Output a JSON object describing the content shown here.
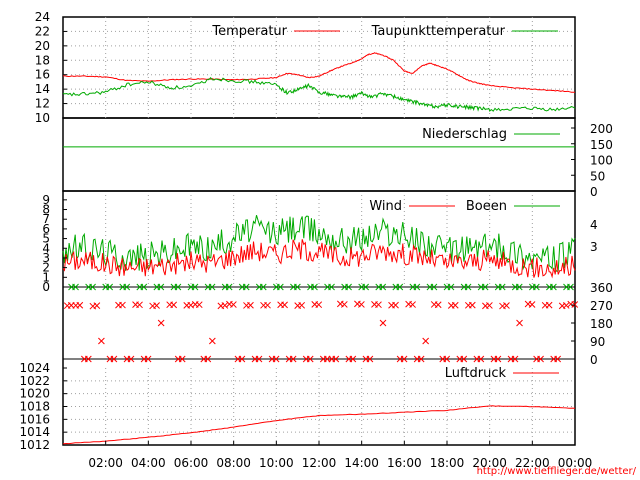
{
  "chart_data": [
    {
      "type": "line",
      "panel": "temperature",
      "ylim": [
        10,
        24
      ],
      "yticks": [
        "24",
        "22",
        "20",
        "18",
        "16",
        "14",
        "12",
        "10"
      ],
      "grid": true,
      "legend_position": "top-right",
      "series": [
        {
          "name": "Temperatur",
          "color": "#ff0000",
          "x": [
            0,
            1,
            2,
            3,
            4,
            5,
            6,
            7,
            8,
            9,
            10,
            10.5,
            11,
            11.5,
            12,
            12.5,
            13,
            13.5,
            14,
            14.3,
            14.6,
            15,
            15.5,
            16,
            16.4,
            16.8,
            17.2,
            17.6,
            18,
            18.5,
            19,
            19.5,
            20,
            21,
            22,
            23,
            24
          ],
          "y": [
            15.8,
            15.8,
            15.7,
            15.2,
            15.1,
            15.3,
            15.4,
            15.4,
            15.3,
            15.4,
            15.6,
            16.2,
            16.0,
            15.6,
            15.8,
            16.5,
            17.1,
            17.6,
            18.2,
            18.8,
            19.0,
            18.7,
            18.0,
            16.5,
            16.2,
            17.2,
            17.6,
            17.2,
            16.8,
            16.0,
            15.2,
            14.8,
            14.5,
            14.2,
            14.0,
            13.8,
            13.6
          ]
        },
        {
          "name": "Taupunkttemperatur",
          "color": "#00aa00",
          "x": [
            0,
            1,
            2,
            3,
            4,
            5,
            6,
            7,
            8,
            9,
            10,
            10.5,
            11,
            11.5,
            12,
            12.5,
            13,
            13.5,
            14,
            14.5,
            15,
            15.5,
            16,
            16.5,
            17,
            17.5,
            18,
            18.5,
            19,
            19.5,
            20,
            21,
            22,
            23,
            24
          ],
          "y": [
            13.2,
            13.3,
            13.6,
            14.6,
            15.0,
            14.2,
            14.3,
            15.5,
            15.2,
            15.0,
            14.6,
            13.5,
            13.9,
            14.5,
            13.6,
            13.3,
            13.0,
            12.9,
            13.4,
            12.9,
            13.4,
            13.0,
            12.5,
            12.2,
            11.8,
            11.6,
            11.8,
            11.6,
            11.5,
            11.3,
            11.2,
            11.2,
            11.3,
            11.1,
            11.5
          ]
        }
      ]
    },
    {
      "type": "line",
      "panel": "precipitation",
      "ylim": [
        0,
        200
      ],
      "yticks_right": [
        "200",
        "150",
        "100",
        "50",
        "0"
      ],
      "grid": false,
      "legend_position": "top-right",
      "series": [
        {
          "name": "Niederschlag",
          "color": "#00aa00",
          "x": [
            0,
            24
          ],
          "y": [
            140,
            140
          ]
        }
      ]
    },
    {
      "type": "line",
      "panel": "wind",
      "ylim": [
        0,
        9.5
      ],
      "yticks_left": [
        "9",
        "8",
        "7",
        "6",
        "5",
        "4",
        "3",
        "2",
        "1",
        "0"
      ],
      "yticks_right": [
        "4",
        "3"
      ],
      "grid": true,
      "legend_position": "top-right",
      "series": [
        {
          "name": "Wind",
          "color": "#ff0000",
          "x": [
            0,
            1,
            2,
            3,
            4,
            5,
            6,
            7,
            8,
            9,
            10,
            11,
            12,
            13,
            14,
            15,
            16,
            17,
            18,
            19,
            20,
            21,
            22,
            23,
            24
          ],
          "y": [
            2.5,
            2.8,
            2.4,
            2.0,
            2.1,
            2.3,
            2.6,
            2.5,
            3.2,
            3.8,
            3.4,
            4.0,
            3.6,
            3.0,
            3.2,
            3.8,
            3.4,
            3.0,
            2.4,
            2.6,
            2.8,
            2.4,
            2.0,
            1.8,
            2.2
          ]
        },
        {
          "name": "Boeen",
          "color": "#00aa00",
          "x": [
            0,
            1,
            2,
            3,
            4,
            5,
            6,
            7,
            8,
            9,
            10,
            11,
            12,
            13,
            14,
            15,
            16,
            17,
            18,
            19,
            20,
            21,
            22,
            23,
            24
          ],
          "y": [
            3.8,
            4.0,
            3.6,
            3.0,
            3.2,
            3.6,
            4.2,
            4.0,
            5.2,
            6.0,
            5.5,
            6.2,
            5.6,
            4.8,
            5.0,
            5.8,
            5.2,
            4.6,
            3.6,
            4.0,
            4.2,
            3.8,
            3.0,
            2.8,
            3.6
          ]
        }
      ]
    },
    {
      "type": "scatter",
      "panel": "wind_direction",
      "ylim": [
        0,
        360
      ],
      "yticks_right": [
        "360",
        "270",
        "180",
        "90",
        "0"
      ],
      "grid": false,
      "series": [
        {
          "name": "",
          "color": "#ff0000",
          "marker": "x",
          "values": [
            270,
            270,
            0,
            270,
            90,
            0,
            270,
            0,
            270,
            0,
            270,
            180,
            270,
            0,
            270,
            270,
            0,
            90,
            270,
            270,
            0,
            270,
            0,
            270,
            0,
            270,
            0,
            270,
            0,
            270,
            0,
            0,
            270,
            0,
            270,
            0,
            270,
            180,
            270,
            0,
            270,
            0,
            90,
            270,
            0,
            270,
            0,
            270,
            0,
            270,
            0,
            270,
            0,
            180,
            270,
            0,
            270,
            0,
            270,
            270
          ]
        },
        {
          "name": "",
          "color": "#00aa00",
          "marker": "x",
          "values": [
            360,
            360,
            360,
            360,
            360,
            360,
            360,
            360,
            360,
            360,
            360,
            360,
            360,
            360,
            360,
            360,
            360,
            360,
            360,
            360,
            360,
            360,
            360,
            360,
            360,
            360,
            360,
            360,
            360,
            360
          ]
        }
      ]
    },
    {
      "type": "line",
      "panel": "pressure",
      "ylim": [
        1012,
        1024
      ],
      "yticks": [
        "1024",
        "1022",
        "1020",
        "1018",
        "1016",
        "1014",
        "1012"
      ],
      "grid": true,
      "legend_position": "top-right",
      "xticks": [
        "02:00",
        "04:00",
        "06:00",
        "08:00",
        "10:00",
        "12:00",
        "14:00",
        "16:00",
        "18:00",
        "20:00",
        "22:00",
        "00:00"
      ],
      "series": [
        {
          "name": "Luftdruck",
          "color": "#ff0000",
          "x": [
            0,
            2,
            4,
            6,
            8,
            10,
            12,
            14,
            16,
            18,
            20,
            22,
            24
          ],
          "y": [
            1012.2,
            1012.6,
            1013.2,
            1013.9,
            1014.8,
            1015.8,
            1016.6,
            1016.8,
            1017.1,
            1017.4,
            1018.1,
            1018.0,
            1017.7
          ]
        }
      ]
    }
  ],
  "labels": {
    "temperature_series_1": "Temperatur",
    "temperature_series_2": "Taupunkttemperatur",
    "precipitation_series": "Niederschlag",
    "wind_series_1": "Wind",
    "wind_series_2": "Boeen",
    "pressure_series": "Luftdruck",
    "source_url": "http://www.tiefflieger.de/wetter/"
  }
}
